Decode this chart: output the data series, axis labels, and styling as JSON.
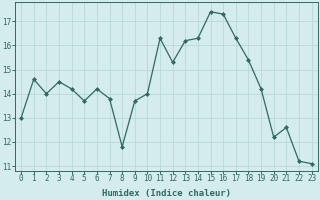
{
  "x": [
    0,
    1,
    2,
    3,
    4,
    5,
    6,
    7,
    8,
    9,
    10,
    11,
    12,
    13,
    14,
    15,
    16,
    17,
    18,
    19,
    20,
    21,
    22,
    23
  ],
  "y": [
    13.0,
    14.6,
    14.0,
    14.5,
    14.2,
    13.7,
    14.2,
    13.8,
    11.8,
    13.7,
    14.0,
    16.3,
    15.3,
    16.2,
    16.3,
    17.4,
    17.3,
    16.3,
    15.4,
    14.2,
    12.2,
    12.6,
    11.2,
    11.1
  ],
  "xlabel": "Humidex (Indice chaleur)",
  "xlim": [
    -0.5,
    23.5
  ],
  "ylim": [
    10.8,
    17.8
  ],
  "yticks": [
    11,
    12,
    13,
    14,
    15,
    16,
    17
  ],
  "xticks": [
    0,
    1,
    2,
    3,
    4,
    5,
    6,
    7,
    8,
    9,
    10,
    11,
    12,
    13,
    14,
    15,
    16,
    17,
    18,
    19,
    20,
    21,
    22,
    23
  ],
  "line_color": "#2e6b5e",
  "marker_color": "#2e6b5e",
  "bg_color": "#d5ecec",
  "grid_color": "#b8d8d8",
  "axis_color": "#2e6b5e",
  "tick_fontsize": 5.5,
  "xlabel_fontsize": 6.5
}
